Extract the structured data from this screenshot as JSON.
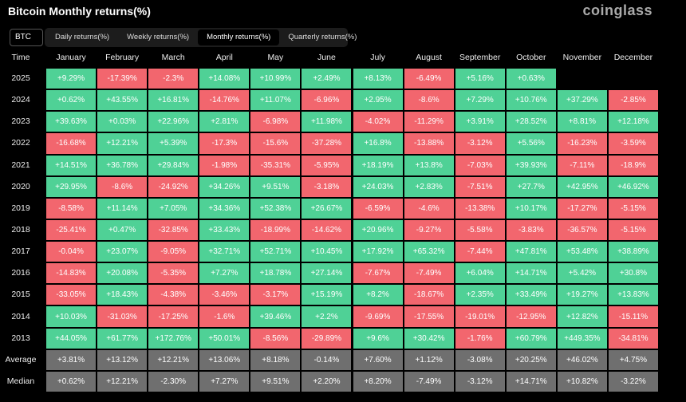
{
  "header": {
    "title": "Bitcoin Monthly returns(%)",
    "brand": "coinglass",
    "selector": "BTC",
    "tabs": [
      "Daily returns(%)",
      "Weekly returns(%)",
      "Monthly returns(%)",
      "Quarterly returns(%)"
    ],
    "active_tab": 2
  },
  "table": {
    "columns": [
      "Time",
      "January",
      "February",
      "March",
      "April",
      "May",
      "June",
      "July",
      "August",
      "September",
      "October",
      "November",
      "December"
    ],
    "rows": [
      {
        "label": "2025",
        "cells": [
          "+9.29%",
          "-17.39%",
          "-2.3%",
          "+14.08%",
          "+10.99%",
          "+2.49%",
          "+8.13%",
          "-6.49%",
          "+5.16%",
          "+0.63%"
        ]
      },
      {
        "label": "2024",
        "cells": [
          "+0.62%",
          "+43.55%",
          "+16.81%",
          "-14.76%",
          "+11.07%",
          "-6.96%",
          "+2.95%",
          "-8.6%",
          "+7.29%",
          "+10.76%",
          "+37.29%",
          "-2.85%"
        ]
      },
      {
        "label": "2023",
        "cells": [
          "+39.63%",
          "+0.03%",
          "+22.96%",
          "+2.81%",
          "-6.98%",
          "+11.98%",
          "-4.02%",
          "-11.29%",
          "+3.91%",
          "+28.52%",
          "+8.81%",
          "+12.18%"
        ]
      },
      {
        "label": "2022",
        "cells": [
          "-16.68%",
          "+12.21%",
          "+5.39%",
          "-17.3%",
          "-15.6%",
          "-37.28%",
          "+16.8%",
          "-13.88%",
          "-3.12%",
          "+5.56%",
          "-16.23%",
          "-3.59%"
        ]
      },
      {
        "label": "2021",
        "cells": [
          "+14.51%",
          "+36.78%",
          "+29.84%",
          "-1.98%",
          "-35.31%",
          "-5.95%",
          "+18.19%",
          "+13.8%",
          "-7.03%",
          "+39.93%",
          "-7.11%",
          "-18.9%"
        ]
      },
      {
        "label": "2020",
        "cells": [
          "+29.95%",
          "-8.6%",
          "-24.92%",
          "+34.26%",
          "+9.51%",
          "-3.18%",
          "+24.03%",
          "+2.83%",
          "-7.51%",
          "+27.7%",
          "+42.95%",
          "+46.92%"
        ]
      },
      {
        "label": "2019",
        "cells": [
          "-8.58%",
          "+11.14%",
          "+7.05%",
          "+34.36%",
          "+52.38%",
          "+26.67%",
          "-6.59%",
          "-4.6%",
          "-13.38%",
          "+10.17%",
          "-17.27%",
          "-5.15%"
        ]
      },
      {
        "label": "2018",
        "cells": [
          "-25.41%",
          "+0.47%",
          "-32.85%",
          "+33.43%",
          "-18.99%",
          "-14.62%",
          "+20.96%",
          "-9.27%",
          "-5.58%",
          "-3.83%",
          "-36.57%",
          "-5.15%"
        ]
      },
      {
        "label": "2017",
        "cells": [
          "-0.04%",
          "+23.07%",
          "-9.05%",
          "+32.71%",
          "+52.71%",
          "+10.45%",
          "+17.92%",
          "+65.32%",
          "-7.44%",
          "+47.81%",
          "+53.48%",
          "+38.89%"
        ]
      },
      {
        "label": "2016",
        "cells": [
          "-14.83%",
          "+20.08%",
          "-5.35%",
          "+7.27%",
          "+18.78%",
          "+27.14%",
          "-7.67%",
          "-7.49%",
          "+6.04%",
          "+14.71%",
          "+5.42%",
          "+30.8%"
        ]
      },
      {
        "label": "2015",
        "cells": [
          "-33.05%",
          "+18.43%",
          "-4.38%",
          "-3.46%",
          "-3.17%",
          "+15.19%",
          "+8.2%",
          "-18.67%",
          "+2.35%",
          "+33.49%",
          "+19.27%",
          "+13.83%"
        ]
      },
      {
        "label": "2014",
        "cells": [
          "+10.03%",
          "-31.03%",
          "-17.25%",
          "-1.6%",
          "+39.46%",
          "+2.2%",
          "-9.69%",
          "-17.55%",
          "-19.01%",
          "-12.95%",
          "+12.82%",
          "-15.11%"
        ]
      },
      {
        "label": "2013",
        "cells": [
          "+44.05%",
          "+61.77%",
          "+172.76%",
          "+50.01%",
          "-8.56%",
          "-29.89%",
          "+9.6%",
          "+30.42%",
          "-1.76%",
          "+60.79%",
          "+449.35%",
          "-34.81%"
        ]
      },
      {
        "label": "Average",
        "summary": true,
        "cells": [
          "+3.81%",
          "+13.12%",
          "+12.21%",
          "+13.06%",
          "+8.18%",
          "-0.14%",
          "+7.60%",
          "+1.12%",
          "-3.08%",
          "+20.25%",
          "+46.02%",
          "+4.75%"
        ]
      },
      {
        "label": "Median",
        "summary": true,
        "cells": [
          "+0.62%",
          "+12.21%",
          "-2.30%",
          "+7.27%",
          "+9.51%",
          "+2.20%",
          "+8.20%",
          "-7.49%",
          "-3.12%",
          "+14.71%",
          "+10.82%",
          "-3.22%"
        ]
      }
    ]
  }
}
